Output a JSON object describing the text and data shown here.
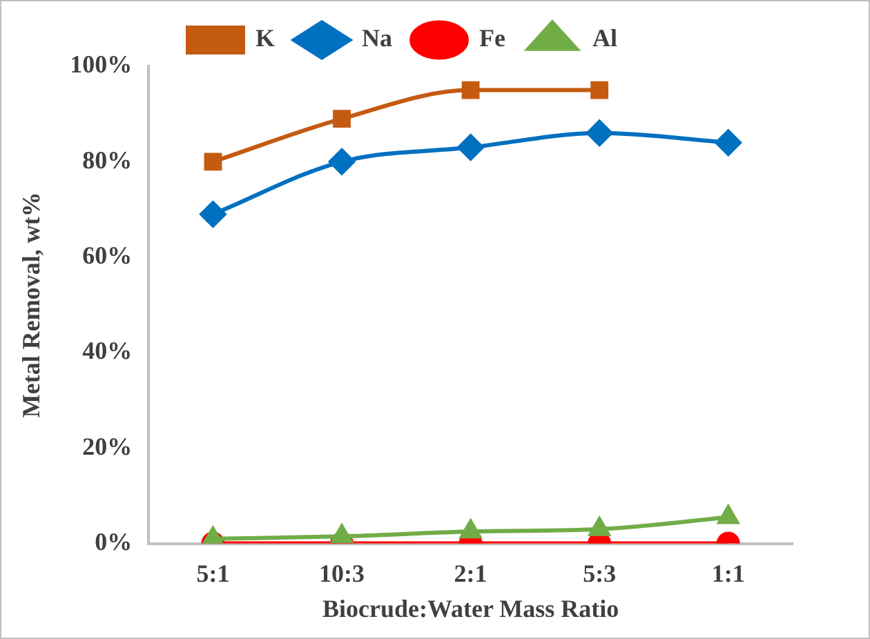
{
  "chart_data": {
    "type": "line",
    "xlabel": "Biocrude:Water Mass Ratio",
    "ylabel": "Metal Removal, wt%",
    "categories": [
      "5:1",
      "10:3",
      "2:1",
      "5:3",
      "1:1"
    ],
    "series": [
      {
        "name": "K",
        "color": "#c55a11",
        "marker": "square",
        "values": [
          80,
          89,
          95,
          95,
          null
        ]
      },
      {
        "name": "Na",
        "color": "#0070c0",
        "marker": "diamond",
        "values": [
          69,
          80,
          83,
          86,
          84
        ]
      },
      {
        "name": "Fe",
        "color": "#ff0000",
        "marker": "circle",
        "values": [
          0,
          0,
          0,
          0,
          0
        ]
      },
      {
        "name": "Al",
        "color": "#70ad47",
        "marker": "triangle",
        "values": [
          1,
          1.5,
          2.5,
          3,
          5.5
        ]
      }
    ],
    "ylim": [
      0,
      100
    ],
    "yticks": [
      {
        "value": 0,
        "label": "0%"
      },
      {
        "value": 20,
        "label": "20%"
      },
      {
        "value": 40,
        "label": "40%"
      },
      {
        "value": 60,
        "label": "60%"
      },
      {
        "value": 80,
        "label": "80%"
      },
      {
        "value": 100,
        "label": "100%"
      }
    ],
    "grid": false,
    "legend": "top"
  }
}
